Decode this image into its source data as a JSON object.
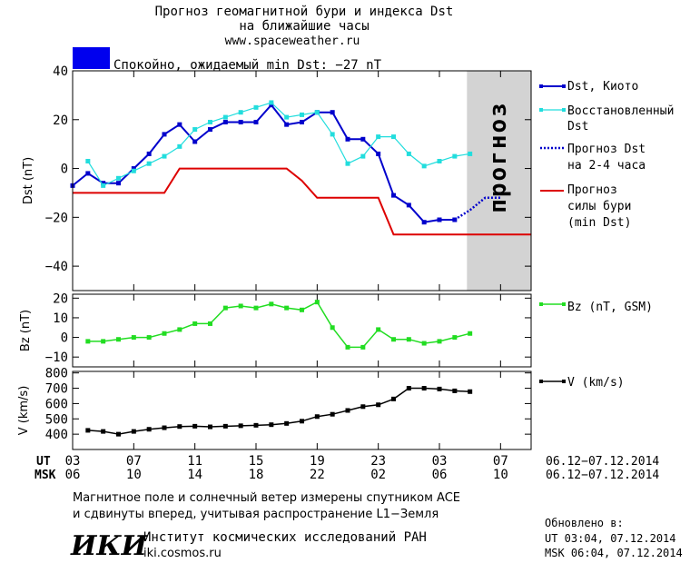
{
  "header": {
    "title_line1": "Прогноз геомагнитной бури и индекса Dst",
    "title_line2": "на ближайшие часы",
    "url": "www.spaceweather.ru",
    "status_color": "#0000ee",
    "status_text": "Спокойно, ожидаемый min Dst: −27 nT"
  },
  "colors": {
    "dst_kyoto": "#0000cc",
    "dst_restored": "#22dddd",
    "dst_forecast": "#0000cc",
    "storm_forecast": "#dd0000",
    "bz": "#22dd22",
    "v": "#000000",
    "forecast_zone": "#d3d3d3",
    "forecast_text": "#b0b0b0"
  },
  "chart_data": [
    {
      "type": "line",
      "ylabel": "Dst (nT)",
      "ylim": [
        -50,
        40
      ],
      "yticks": [
        -40,
        -20,
        0,
        20,
        40
      ],
      "xlim": [
        0,
        30
      ],
      "forecast_zone": {
        "x_start": 25.8,
        "label": "прогноз"
      },
      "series": [
        {
          "name": "Dst, Киото",
          "x": [
            0,
            1,
            2,
            3,
            4,
            5,
            6,
            7,
            8,
            9,
            10,
            11,
            12,
            13,
            14,
            15,
            16,
            17,
            18,
            19,
            20,
            21,
            22,
            23,
            24,
            25
          ],
          "y": [
            -7,
            -2,
            -6,
            -6,
            0,
            6,
            14,
            18,
            11,
            16,
            19,
            19,
            19,
            26,
            18,
            19,
            23,
            23,
            12,
            12,
            6,
            -11,
            -15,
            -22,
            -21,
            -21
          ]
        },
        {
          "name": "Восстановленный Dst",
          "x": [
            1,
            2,
            3,
            4,
            5,
            6,
            7,
            8,
            9,
            10,
            11,
            12,
            13,
            14,
            15,
            16,
            17,
            18,
            19,
            20,
            21,
            22,
            23,
            24,
            25,
            26
          ],
          "y": [
            3,
            -7,
            -4,
            -1,
            2,
            5,
            9,
            16,
            19,
            21,
            23,
            25,
            27,
            21,
            22,
            23,
            14,
            2,
            5,
            13,
            13,
            6,
            1,
            3,
            5,
            6
          ]
        },
        {
          "name": "Прогноз Dst на 2-4 часа",
          "x": [
            25,
            26,
            27,
            28
          ],
          "y": [
            -21,
            -17,
            -12,
            -12
          ]
        },
        {
          "name": "Прогноз силы бури (min Dst)",
          "x": [
            0,
            6,
            7,
            14,
            15,
            16,
            20,
            21,
            30
          ],
          "y": [
            -10,
            -10,
            0,
            0,
            -5,
            -12,
            -12,
            -27,
            -27
          ]
        }
      ]
    },
    {
      "type": "line",
      "ylabel": "Bz (nT)",
      "ylim": [
        -15,
        22
      ],
      "yticks": [
        -10,
        0,
        10,
        20
      ],
      "xlim": [
        0,
        30
      ],
      "series": [
        {
          "name": "Bz (nT, GSM)",
          "x": [
            1,
            2,
            3,
            4,
            5,
            6,
            7,
            8,
            9,
            10,
            11,
            12,
            13,
            14,
            15,
            16,
            17,
            18,
            19,
            20,
            21,
            22,
            23,
            24,
            25,
            26
          ],
          "y": [
            -2,
            -2,
            -1,
            0,
            0,
            2,
            4,
            7,
            7,
            15,
            16,
            15,
            17,
            15,
            14,
            18,
            5,
            -5,
            -5,
            4,
            -1,
            -1,
            -3,
            -2,
            0,
            2
          ]
        }
      ]
    },
    {
      "type": "line",
      "ylabel": "V (km/s)",
      "ylim": [
        300,
        810
      ],
      "yticks": [
        400,
        500,
        600,
        700,
        800
      ],
      "xlim": [
        0,
        30
      ],
      "series": [
        {
          "name": "V (km/s)",
          "x": [
            1,
            2,
            3,
            4,
            5,
            6,
            7,
            8,
            9,
            10,
            11,
            12,
            13,
            14,
            15,
            16,
            17,
            18,
            19,
            20,
            21,
            22,
            23,
            24,
            25,
            26
          ],
          "y": [
            425,
            418,
            400,
            418,
            432,
            442,
            450,
            452,
            448,
            452,
            455,
            458,
            462,
            470,
            485,
            515,
            530,
            555,
            580,
            592,
            630,
            700,
            700,
            695,
            683,
            678
          ]
        }
      ]
    }
  ],
  "x_axis": {
    "ut_label": "UT",
    "msk_label": "MSK",
    "ut_ticks": [
      "03",
      "07",
      "11",
      "15",
      "19",
      "23",
      "03",
      "07"
    ],
    "msk_ticks": [
      "06",
      "10",
      "14",
      "18",
      "22",
      "02",
      "06",
      "10"
    ],
    "tick_x": [
      0,
      4,
      8,
      12,
      16,
      20,
      24,
      28
    ],
    "ut_range": "06.12−07.12.2014",
    "msk_range": "06.12−07.12.2014"
  },
  "footer": {
    "note_line1": "Магнитное поле и солнечный ветер измерены спутником ACE",
    "note_line2": "и сдвинуты вперед, учитывая распространение L1−Земля",
    "logo": "ИКИ",
    "institute": "Институт космических исследований РАН",
    "site": "iki.cosmos.ru",
    "updated_label": "Обновлено в:",
    "updated_ut": "UT  03:04, 07.12.2014",
    "updated_msk": "MSK 06:04, 07.12.2014"
  },
  "legend": {
    "dst_kyoto": "Dst, Киото",
    "restored_l1": "Восстановленный",
    "restored_l2": "Dst",
    "forecast_l1": "Прогноз Dst",
    "forecast_l2": "на 2-4 часа",
    "storm_l1": "Прогноз",
    "storm_l2": "силы бури",
    "storm_l3": "(min Dst)",
    "bz": "Bz (nT, GSM)",
    "v": "V (km/s)"
  }
}
